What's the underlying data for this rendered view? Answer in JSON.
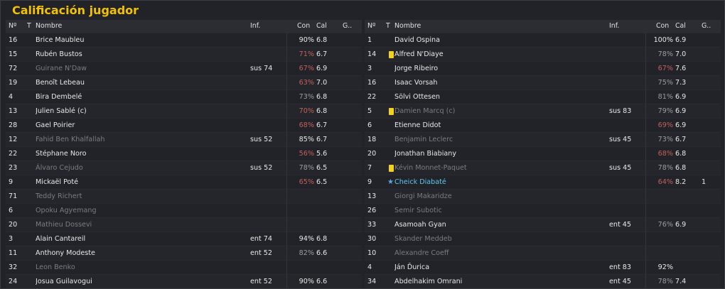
{
  "title": "Calificación jugador",
  "headers": {
    "num": "Nº",
    "t": "T",
    "name": "Nombre",
    "inf": "Inf.",
    "con": "Con",
    "cal": "Cal",
    "g": "G.."
  },
  "left": [
    {
      "num": "16",
      "name": "Brice Maubleu",
      "inf": "",
      "con": "90%",
      "conLevel": "high",
      "cal": "6.8",
      "g": "",
      "sub": false
    },
    {
      "num": "15",
      "name": "Rubén Bustos",
      "inf": "",
      "con": "71%",
      "conLevel": "low",
      "cal": "6.7",
      "g": "",
      "sub": false
    },
    {
      "num": "72",
      "name": "Guirane N'Daw",
      "inf": "sus 74",
      "con": "67%",
      "conLevel": "low",
      "cal": "6.9",
      "g": "",
      "sub": true
    },
    {
      "num": "19",
      "name": "Benoît Lebeau",
      "inf": "",
      "con": "63%",
      "conLevel": "low",
      "cal": "7.0",
      "g": "",
      "sub": false
    },
    {
      "num": "4",
      "name": "Bira Dembelé",
      "inf": "",
      "con": "73%",
      "conLevel": "mid",
      "cal": "6.8",
      "g": "",
      "sub": false
    },
    {
      "num": "13",
      "name": "Julien Sablé (c)",
      "inf": "",
      "con": "70%",
      "conLevel": "low",
      "cal": "6.8",
      "g": "",
      "sub": false
    },
    {
      "num": "28",
      "name": "Gael Poirier",
      "inf": "",
      "con": "68%",
      "conLevel": "low",
      "cal": "6.7",
      "g": "",
      "sub": false
    },
    {
      "num": "12",
      "name": "Fahid Ben Khalfallah",
      "inf": "sus 52",
      "con": "85%",
      "conLevel": "high",
      "cal": "6.7",
      "g": "",
      "sub": true
    },
    {
      "num": "22",
      "name": "Stéphane Noro",
      "inf": "",
      "con": "56%",
      "conLevel": "low",
      "cal": "5.6",
      "g": "",
      "sub": false
    },
    {
      "num": "23",
      "name": "Álvaro Cejudo",
      "inf": "sus 52",
      "con": "78%",
      "conLevel": "mid",
      "cal": "6.5",
      "g": "",
      "sub": true
    },
    {
      "num": "9",
      "name": "Mickaël Poté",
      "inf": "",
      "con": "65%",
      "conLevel": "low",
      "cal": "6.5",
      "g": "",
      "sub": false
    },
    {
      "num": "71",
      "name": "Teddy Richert",
      "inf": "",
      "con": "",
      "conLevel": "mid",
      "cal": "",
      "g": "",
      "sub": true
    },
    {
      "num": "6",
      "name": "Opoku Agyemang",
      "inf": "",
      "con": "",
      "conLevel": "mid",
      "cal": "",
      "g": "",
      "sub": true
    },
    {
      "num": "20",
      "name": "Mathieu Dossevi",
      "inf": "",
      "con": "",
      "conLevel": "mid",
      "cal": "",
      "g": "",
      "sub": true
    },
    {
      "num": "3",
      "name": "Alain Cantareil",
      "inf": "ent 74",
      "con": "94%",
      "conLevel": "high",
      "cal": "6.8",
      "g": "",
      "sub": false
    },
    {
      "num": "11",
      "name": "Anthony Modeste",
      "inf": "ent 52",
      "con": "82%",
      "conLevel": "mid",
      "cal": "6.6",
      "g": "",
      "sub": false
    },
    {
      "num": "32",
      "name": "Leon Benko",
      "inf": "",
      "con": "",
      "conLevel": "mid",
      "cal": "",
      "g": "",
      "sub": true
    },
    {
      "num": "24",
      "name": "Josua Guilavogui",
      "inf": "ent 52",
      "con": "90%",
      "conLevel": "high",
      "cal": "6.6",
      "g": "",
      "sub": false
    }
  ],
  "right": [
    {
      "num": "1",
      "name": "David Ospina",
      "inf": "",
      "con": "100%",
      "conLevel": "high",
      "cal": "6.9",
      "g": "",
      "sub": false,
      "mark": ""
    },
    {
      "num": "14",
      "name": "Alfred N'Diaye",
      "inf": "",
      "con": "78%",
      "conLevel": "mid",
      "cal": "7.0",
      "g": "",
      "sub": false,
      "mark": "card"
    },
    {
      "num": "3",
      "name": "Jorge Ribeiro",
      "inf": "",
      "con": "67%",
      "conLevel": "low",
      "cal": "7.6",
      "g": "",
      "sub": false,
      "mark": ""
    },
    {
      "num": "16",
      "name": "Isaac Vorsah",
      "inf": "",
      "con": "75%",
      "conLevel": "mid",
      "cal": "7.3",
      "g": "",
      "sub": false,
      "mark": ""
    },
    {
      "num": "22",
      "name": "Sölvi Ottesen",
      "inf": "",
      "con": "81%",
      "conLevel": "mid",
      "cal": "6.9",
      "g": "",
      "sub": false,
      "mark": ""
    },
    {
      "num": "5",
      "name": "Damien Marcq (c)",
      "inf": "sus 83",
      "con": "79%",
      "conLevel": "mid",
      "cal": "6.9",
      "g": "",
      "sub": true,
      "mark": "card"
    },
    {
      "num": "6",
      "name": "Etienne Didot",
      "inf": "",
      "con": "69%",
      "conLevel": "low",
      "cal": "6.9",
      "g": "",
      "sub": false,
      "mark": ""
    },
    {
      "num": "18",
      "name": "Benjamin Leclerc",
      "inf": "sus 45",
      "con": "73%",
      "conLevel": "mid",
      "cal": "6.7",
      "g": "",
      "sub": true,
      "mark": ""
    },
    {
      "num": "20",
      "name": "Jonathan Biabiany",
      "inf": "",
      "con": "68%",
      "conLevel": "low",
      "cal": "6.8",
      "g": "",
      "sub": false,
      "mark": ""
    },
    {
      "num": "7",
      "name": "Kévin Monnet-Paquet",
      "inf": "sus 45",
      "con": "78%",
      "conLevel": "mid",
      "cal": "6.8",
      "g": "",
      "sub": true,
      "mark": "card"
    },
    {
      "num": "9",
      "name": "Cheick Diabaté",
      "inf": "",
      "con": "64%",
      "conLevel": "low",
      "cal": "8.2",
      "g": "1",
      "sub": false,
      "mark": "star",
      "highlight": true
    },
    {
      "num": "13",
      "name": "Giorgi Makaridze",
      "inf": "",
      "con": "",
      "conLevel": "mid",
      "cal": "",
      "g": "",
      "sub": true,
      "mark": ""
    },
    {
      "num": "26",
      "name": "Semir Subotic",
      "inf": "",
      "con": "",
      "conLevel": "mid",
      "cal": "",
      "g": "",
      "sub": true,
      "mark": ""
    },
    {
      "num": "33",
      "name": "Asamoah Gyan",
      "inf": "ent 45",
      "con": "76%",
      "conLevel": "mid",
      "cal": "6.9",
      "g": "",
      "sub": false,
      "mark": ""
    },
    {
      "num": "30",
      "name": "Skander Meddeb",
      "inf": "",
      "con": "",
      "conLevel": "mid",
      "cal": "",
      "g": "",
      "sub": true,
      "mark": ""
    },
    {
      "num": "10",
      "name": "Alexandre Coeff",
      "inf": "",
      "con": "",
      "conLevel": "mid",
      "cal": "",
      "g": "",
      "sub": true,
      "mark": ""
    },
    {
      "num": "4",
      "name": "Ján Ďurica",
      "inf": "ent 83",
      "con": "92%",
      "conLevel": "high",
      "cal": "",
      "g": "",
      "sub": false,
      "mark": ""
    },
    {
      "num": "34",
      "name": "Abdelhakim Omrani",
      "inf": "ent 45",
      "con": "78%",
      "conLevel": "mid",
      "cal": "7.4",
      "g": "",
      "sub": false,
      "mark": ""
    }
  ]
}
